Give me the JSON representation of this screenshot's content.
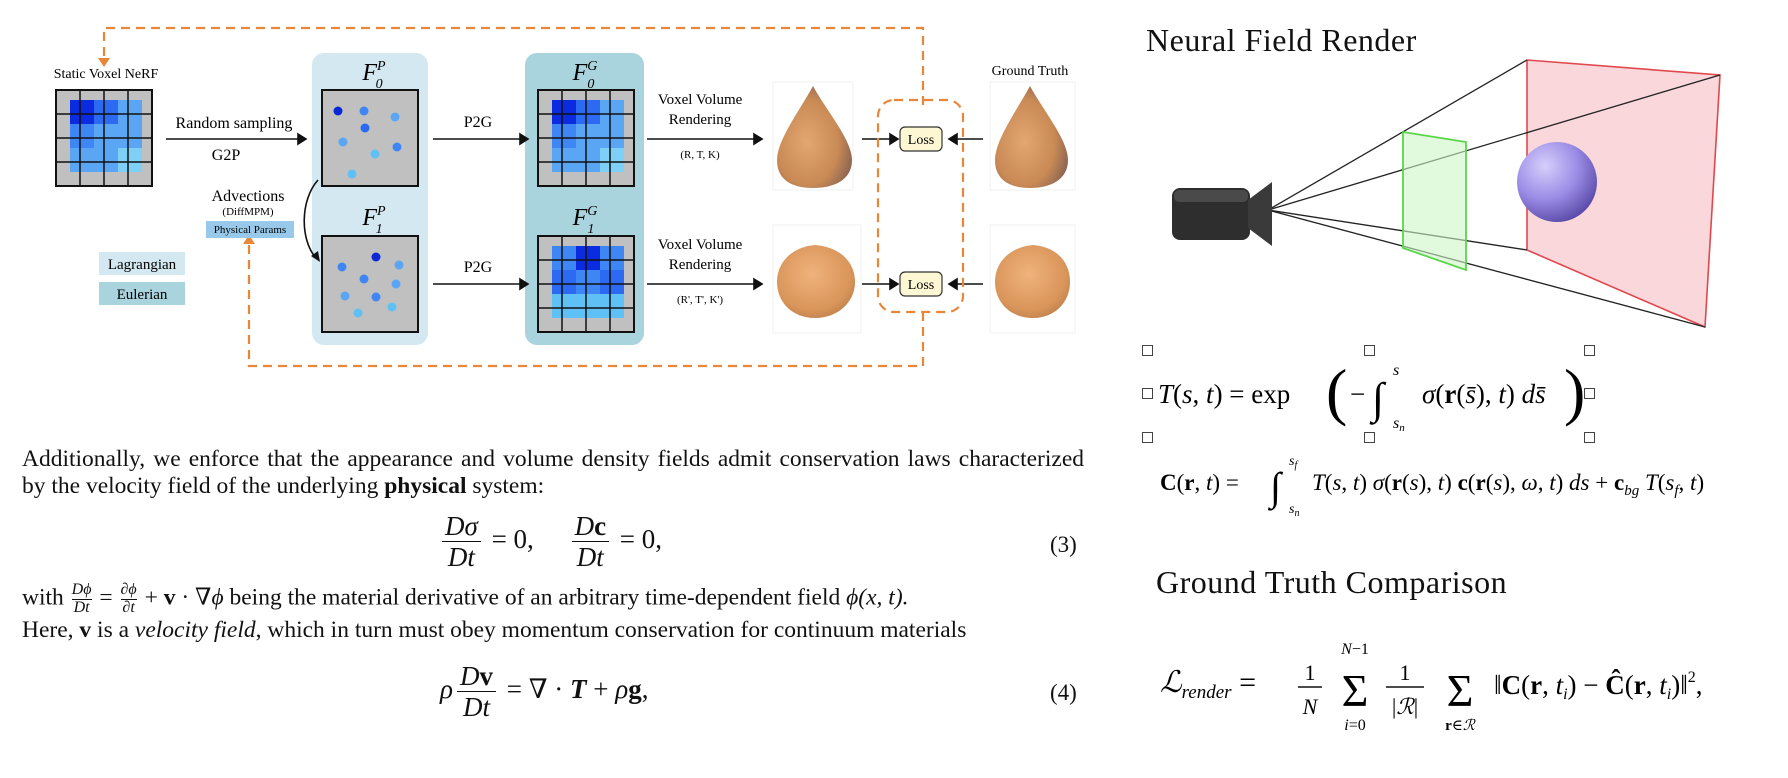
{
  "diagram": {
    "static_nerf_label": "Static Voxel NeRF",
    "random_sampling_label": "Random sampling",
    "g2p_label": "G2P",
    "advections_label": "Advections",
    "diffmpm_label": "(DiffMPM)",
    "physical_params_label": "Physical Params",
    "legend_lagrangian": "Lagrangian",
    "legend_eulerian": "Eulerian",
    "p2g_top": "P2G",
    "p2g_bottom": "P2G",
    "render_top_line1": "Voxel Volume",
    "render_top_line2": "Rendering",
    "render_top_params": "(R, T, K)",
    "render_bottom_line1": "Voxel Volume",
    "render_bottom_line2": "Rendering",
    "render_bottom_params": "(R', T', K')",
    "loss_top": "Loss",
    "loss_bottom": "Loss",
    "ground_truth_label": "Ground Truth",
    "field_f0p": "F",
    "field_f0p_sup": "P",
    "field_f0p_sub": "0",
    "field_f1p": "F",
    "field_f1p_sup": "P",
    "field_f1p_sub": "1",
    "field_f0g": "F",
    "field_f0g_sup": "G",
    "field_f0g_sub": "0",
    "field_f1g": "F",
    "field_f1g_sup": "G",
    "field_f1g_sub": "1",
    "colors": {
      "lagrangian_bg": "#d4e8f2",
      "eulerian_bg": "#a9d3dd",
      "dashed": "#e8873a",
      "loss_box": "#fdf7d3",
      "cone": "#c98a55",
      "sphere": "#9b8ce6"
    }
  },
  "text": {
    "para1_part1": "Additionally, we enforce that the appearance and volume density fields admit conservation laws characterized by the velocity field of the underlying ",
    "para1_bold": "physical",
    "para1_part2": " system:",
    "eq3_number": "(3)",
    "para2_with": "with ",
    "para2_mid": " being the material derivative of an arbitrary time-dependent field ",
    "para2_phi": "ϕ(x, t).",
    "para3_here": "Here, ",
    "para3_v": "v",
    "para3_is_a": " is a ",
    "para3_italic": "velocity field",
    "para3_rest": ", which in turn must obey momentum conservation for continuum materials",
    "eq4_number": "(4)"
  },
  "right": {
    "neural_field_heading": "Neural Field Render",
    "gt_comparison_heading": "Ground Truth Comparison",
    "transmittance_eq": "T(s, t) = exp(−∫ σ(r(s̄), t) ds̄)",
    "color_eq": "C(r, t) = ∫ T(s, t) σ(r(s), t) c(r(s), ω, t) ds + c_bg T(s_f, t)",
    "loss_eq": "L_render = 1/N Σ 1/|R| Σ ‖C(r, t_i) − Ĉ(r, t_i)‖²,"
  }
}
